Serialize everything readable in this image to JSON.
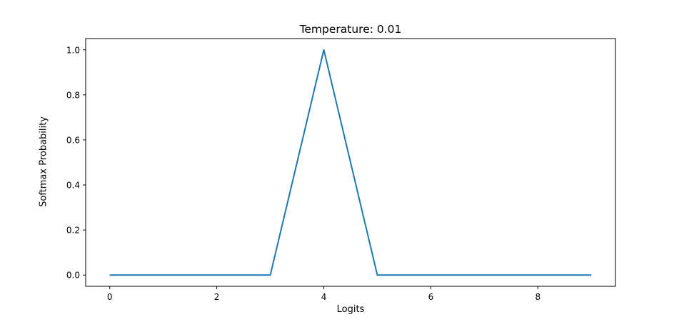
{
  "chart_data": {
    "type": "line",
    "title": "Temperature: 0.01",
    "xlabel": "Logits",
    "ylabel": "Softmax Probability",
    "x": [
      0,
      1,
      2,
      3,
      4,
      5,
      6,
      7,
      8,
      9
    ],
    "series": [
      {
        "values": [
          0.0,
          0.0,
          0.0,
          0.0,
          1.0,
          0.0,
          0.0,
          0.0,
          0.0,
          0.0
        ],
        "color": "#1f77b4"
      }
    ],
    "xlim": [
      -0.45,
      9.45
    ],
    "ylim": [
      -0.05,
      1.05
    ],
    "xticks": [
      0,
      2,
      4,
      6,
      8
    ],
    "yticks": [
      0.0,
      0.2,
      0.4,
      0.6,
      0.8,
      1.0
    ],
    "ytick_labels": [
      "0.0",
      "0.2",
      "0.4",
      "0.6",
      "0.8",
      "1.0"
    ],
    "grid": false,
    "legend": "none"
  }
}
